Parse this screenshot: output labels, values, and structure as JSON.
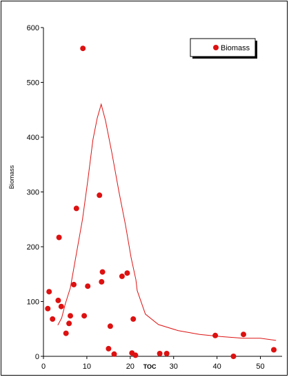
{
  "chart_data": {
    "type": "scatter",
    "xlabel": "TOC",
    "ylabel": "Biomass",
    "xlim": [
      0,
      55
    ],
    "ylim": [
      0,
      600
    ],
    "x_ticks": [
      "0",
      "10",
      "20",
      "30",
      "40",
      "50"
    ],
    "x_tick_values": [
      0,
      10,
      20,
      30,
      40,
      50
    ],
    "y_ticks": [
      "0",
      "100",
      "200",
      "300",
      "400",
      "500",
      "600"
    ],
    "y_tick_values": [
      0,
      100,
      200,
      300,
      400,
      500,
      600
    ],
    "grid": false,
    "legend": {
      "position": "top-right",
      "entries": [
        "Biomass"
      ]
    },
    "colors": {
      "points": "#dd1111",
      "curve": "#dd1111",
      "axis": "#000000"
    },
    "series": [
      {
        "name": "Biomass",
        "kind": "scatter",
        "points": [
          [
            1.0,
            87
          ],
          [
            1.3,
            118
          ],
          [
            2.1,
            68
          ],
          [
            3.4,
            102
          ],
          [
            3.6,
            217
          ],
          [
            4.1,
            91
          ],
          [
            5.2,
            42
          ],
          [
            5.9,
            60
          ],
          [
            6.2,
            74
          ],
          [
            7.0,
            131
          ],
          [
            7.6,
            270
          ],
          [
            9.1,
            562
          ],
          [
            9.4,
            74
          ],
          [
            10.2,
            128
          ],
          [
            12.9,
            294
          ],
          [
            13.4,
            136
          ],
          [
            13.6,
            154
          ],
          [
            15.0,
            14
          ],
          [
            15.4,
            55
          ],
          [
            16.3,
            4
          ],
          [
            18.1,
            146
          ],
          [
            19.3,
            152
          ],
          [
            20.4,
            6
          ],
          [
            20.7,
            68
          ],
          [
            21.2,
            2
          ],
          [
            26.8,
            5
          ],
          [
            28.4,
            5
          ],
          [
            39.6,
            38
          ],
          [
            43.8,
            0
          ],
          [
            46.1,
            40
          ],
          [
            53.1,
            12
          ]
        ]
      },
      {
        "name": "",
        "kind": "line",
        "points": [
          [
            3.3,
            57
          ],
          [
            4.2,
            70
          ],
          [
            5.0,
            95
          ],
          [
            6.2,
            125
          ],
          [
            7.2,
            170
          ],
          [
            9.0,
            250
          ],
          [
            10.2,
            320
          ],
          [
            11.4,
            395
          ],
          [
            12.4,
            435
          ],
          [
            13.3,
            460
          ],
          [
            14.3,
            430
          ],
          [
            15.8,
            370
          ],
          [
            17.4,
            300
          ],
          [
            18.9,
            240
          ],
          [
            20.2,
            180
          ],
          [
            21.3,
            140
          ],
          [
            21.6,
            120
          ],
          [
            23.5,
            77
          ],
          [
            26.5,
            58
          ],
          [
            31.0,
            47
          ],
          [
            36.0,
            40
          ],
          [
            41.0,
            36
          ],
          [
            46.0,
            33
          ],
          [
            50.0,
            33
          ],
          [
            53.6,
            29
          ]
        ]
      }
    ]
  }
}
